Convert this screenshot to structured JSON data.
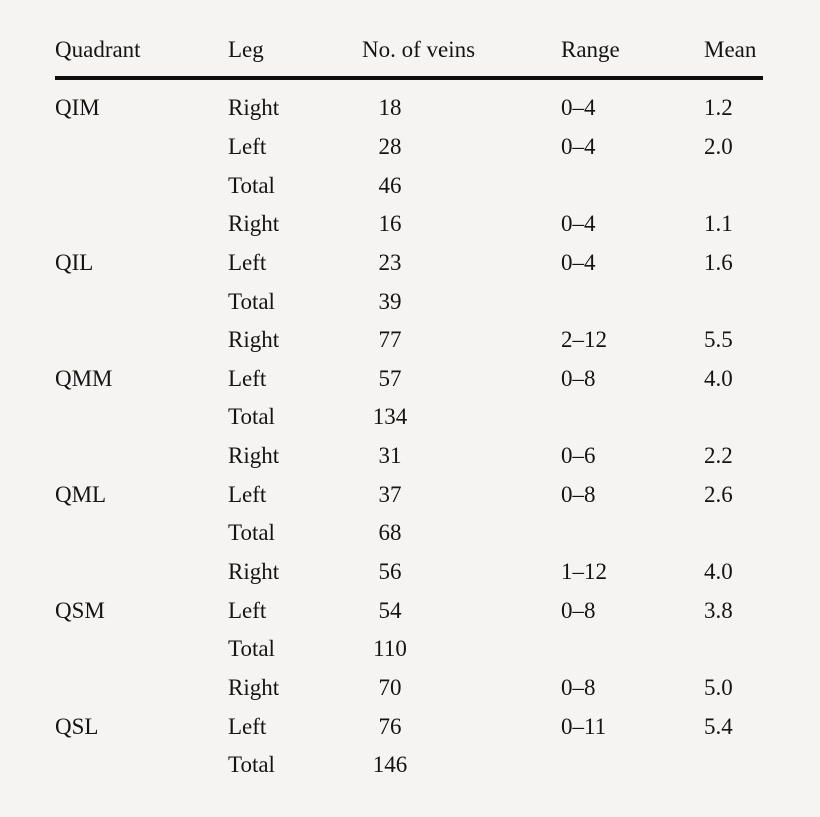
{
  "page": {
    "background": "#f5f4f2",
    "text_color": "#141414",
    "rule_color": "#0e0e0e"
  },
  "table": {
    "columns": [
      "Quadrant",
      "Leg",
      "No. of veins",
      "Range",
      "Mean"
    ],
    "groups": [
      {
        "quadrant": "QIM",
        "quadrant_label_row": 0,
        "rows": [
          {
            "leg": "Right",
            "veins": "18",
            "range": "0–4",
            "mean": "1.2"
          },
          {
            "leg": "Left",
            "veins": "28",
            "range": "0–4",
            "mean": "2.0"
          },
          {
            "leg": "Total",
            "veins": "46",
            "range": "",
            "mean": ""
          }
        ]
      },
      {
        "quadrant": "QIL",
        "quadrant_label_row": 1,
        "rows": [
          {
            "leg": "Right",
            "veins": "16",
            "range": "0–4",
            "mean": "1.1"
          },
          {
            "leg": "Left",
            "veins": "23",
            "range": "0–4",
            "mean": "1.6"
          },
          {
            "leg": "Total",
            "veins": "39",
            "range": "",
            "mean": ""
          }
        ]
      },
      {
        "quadrant": "QMM",
        "quadrant_label_row": 1,
        "rows": [
          {
            "leg": "Right",
            "veins": "77",
            "range": "2–12",
            "mean": "5.5"
          },
          {
            "leg": "Left",
            "veins": "57",
            "range": "0–8",
            "mean": "4.0"
          },
          {
            "leg": "Total",
            "veins": "134",
            "range": "",
            "mean": ""
          }
        ]
      },
      {
        "quadrant": "QML",
        "quadrant_label_row": 1,
        "rows": [
          {
            "leg": "Right",
            "veins": "31",
            "range": "0–6",
            "mean": "2.2"
          },
          {
            "leg": "Left",
            "veins": "37",
            "range": "0–8",
            "mean": "2.6"
          },
          {
            "leg": "Total",
            "veins": "68",
            "range": "",
            "mean": ""
          }
        ]
      },
      {
        "quadrant": "QSM",
        "quadrant_label_row": 1,
        "rows": [
          {
            "leg": "Right",
            "veins": "56",
            "range": "1–12",
            "mean": "4.0"
          },
          {
            "leg": "Left",
            "veins": "54",
            "range": "0–8",
            "mean": "3.8"
          },
          {
            "leg": "Total",
            "veins": "110",
            "range": "",
            "mean": ""
          }
        ]
      },
      {
        "quadrant": "QSL",
        "quadrant_label_row": 1,
        "rows": [
          {
            "leg": "Right",
            "veins": "70",
            "range": "0–8",
            "mean": "5.0"
          },
          {
            "leg": "Left",
            "veins": "76",
            "range": "0–11",
            "mean": "5.4"
          },
          {
            "leg": "Total",
            "veins": "146",
            "range": "",
            "mean": ""
          }
        ]
      }
    ]
  }
}
